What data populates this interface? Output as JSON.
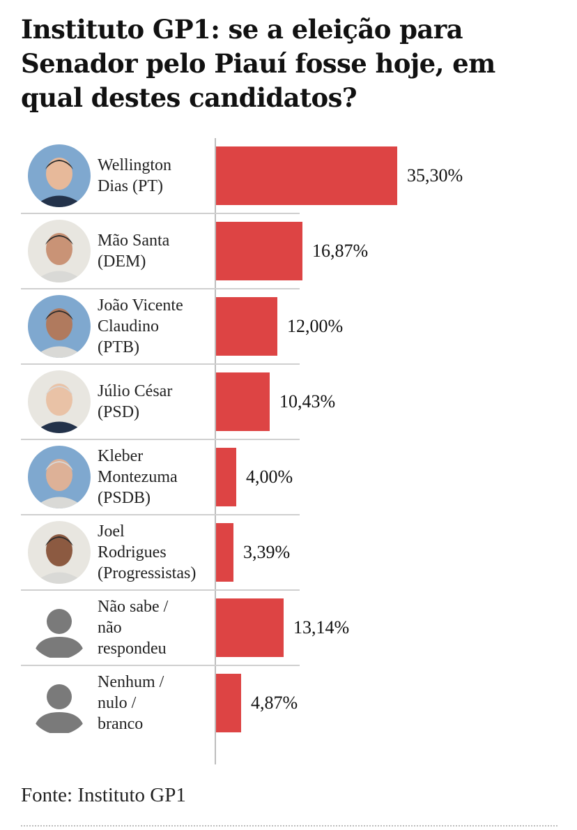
{
  "header": {
    "title": "Instituto GP1: se a eleição para Senador pelo Piauí fosse hoje, em qual destes candidatos?"
  },
  "colors": {
    "bar": "#dd4444",
    "axis": "#bdbdbd",
    "divider": "#cfcfcf"
  },
  "chart_data": {
    "type": "bar",
    "orientation": "horizontal",
    "title": "Instituto GP1: se a eleição para Senador pelo Piauí fosse hoje, em qual destes candidatos?",
    "categories": [
      "Wellington\nDias (PT)",
      "Mão Santa\n(DEM)",
      "João Vicente\nClaudino\n(PTB)",
      "Júlio César\n(PSD)",
      "Kleber\nMontezuma\n(PSDB)",
      "Joel\nRodrigues\n(Progressistas)",
      "Não sabe /\nnão\nrespondeu",
      "Nenhum /\nnulo /\nbranco"
    ],
    "values": [
      35.3,
      16.87,
      12.0,
      10.43,
      4.0,
      3.39,
      13.14,
      4.87
    ],
    "value_labels": [
      "35,30%",
      "16,87%",
      "12,00%",
      "10,43%",
      "4,00%",
      "3,39%",
      "13,14%",
      "4,87%"
    ],
    "avatars": [
      "photo-avatar",
      "photo-avatar",
      "photo-avatar",
      "photo-avatar",
      "photo-avatar",
      "photo-avatar",
      "silhouette-icon",
      "silhouette-icon"
    ],
    "unit": "%",
    "xlim": [
      0,
      40
    ],
    "legend": false,
    "grid": false
  },
  "footer": {
    "source": "Fonte: Instituto GP1"
  }
}
